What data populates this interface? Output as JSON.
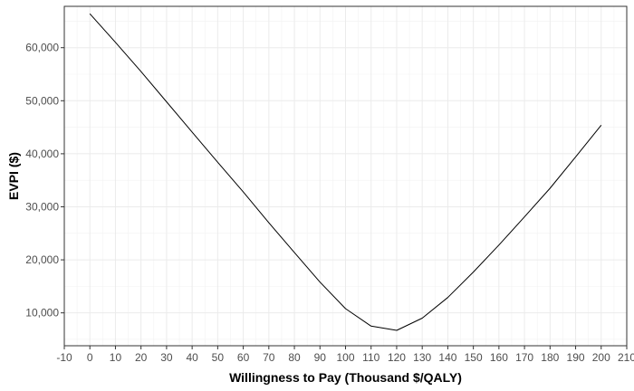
{
  "chart_data": {
    "type": "line",
    "title": "",
    "xlabel": "Willingness to Pay (Thousand $/QALY)",
    "ylabel": "EVPI ($)",
    "xlim": [
      -10,
      210
    ],
    "ylim": [
      3800,
      67800
    ],
    "x_ticks": [
      -10,
      0,
      10,
      20,
      30,
      40,
      50,
      60,
      70,
      80,
      90,
      100,
      110,
      120,
      130,
      140,
      150,
      160,
      170,
      180,
      190,
      200,
      210
    ],
    "x_tick_labels": [
      "-10",
      "0",
      "10",
      "20",
      "30",
      "40",
      "50",
      "60",
      "70",
      "80",
      "90",
      "100",
      "110",
      "120",
      "130",
      "140",
      "150",
      "160",
      "170",
      "180",
      "190",
      "200",
      "210"
    ],
    "y_ticks": [
      10000,
      20000,
      30000,
      40000,
      50000,
      60000
    ],
    "y_tick_labels": [
      "10,000",
      "20,000",
      "30,000",
      "40,000",
      "50,000",
      "60,000"
    ],
    "grid": true,
    "legend": "none",
    "series": [
      {
        "color": "#000000",
        "x": [
          0,
          10,
          20,
          30,
          40,
          50,
          60,
          70,
          80,
          90,
          100,
          110,
          120,
          130,
          140,
          150,
          160,
          170,
          180,
          190,
          200
        ],
        "y": [
          66400,
          61000,
          55500,
          49800,
          44100,
          38400,
          32800,
          27000,
          21400,
          15800,
          10800,
          7500,
          6700,
          9000,
          12900,
          17700,
          22800,
          28100,
          33500,
          39400,
          45400
        ]
      }
    ]
  }
}
